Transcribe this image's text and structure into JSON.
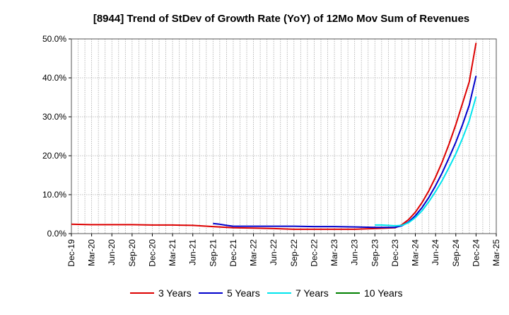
{
  "chart_data": {
    "type": "line",
    "title": "[8944]  Trend of StDev of Growth Rate (YoY) of 12Mo Mov Sum of Revenues",
    "xlabel": "",
    "ylabel": "",
    "x_ticks": [
      "Dec-19",
      "Mar-20",
      "Jun-20",
      "Sep-20",
      "Dec-20",
      "Mar-21",
      "Jun-21",
      "Sep-21",
      "Dec-21",
      "Mar-22",
      "Jun-22",
      "Sep-22",
      "Dec-22",
      "Mar-23",
      "Jun-23",
      "Sep-23",
      "Dec-23",
      "Mar-24",
      "Jun-24",
      "Sep-24",
      "Dec-24",
      "Mar-25"
    ],
    "y_ticks": [
      "0.0%",
      "10.0%",
      "20.0%",
      "30.0%",
      "40.0%",
      "50.0%"
    ],
    "ylim": [
      0,
      0.5
    ],
    "grid": true,
    "legend_position": "bottom",
    "series": [
      {
        "name": "3 Years",
        "color": "#dd0000",
        "points": [
          [
            "Dec-19",
            0.024
          ],
          [
            "Mar-20",
            0.023
          ],
          [
            "Jun-20",
            0.023
          ],
          [
            "Sep-20",
            0.023
          ],
          [
            "Dec-20",
            0.022
          ],
          [
            "Mar-21",
            0.022
          ],
          [
            "Jun-21",
            0.021
          ],
          [
            "Sep-21",
            0.018
          ],
          [
            "Dec-21",
            0.015
          ],
          [
            "Mar-22",
            0.014
          ],
          [
            "Jun-22",
            0.013
          ],
          [
            "Sep-22",
            0.011
          ],
          [
            "Dec-22",
            0.011
          ],
          [
            "Mar-23",
            0.011
          ],
          [
            "Jun-23",
            0.011
          ],
          [
            "Sep-23",
            0.013
          ],
          [
            "Dec-23",
            0.015
          ],
          [
            "Jan-24",
            0.023
          ],
          [
            "Feb-24",
            0.036
          ],
          [
            "Mar-24",
            0.055
          ],
          [
            "Apr-24",
            0.08
          ],
          [
            "May-24",
            0.11
          ],
          [
            "Jun-24",
            0.145
          ],
          [
            "Jul-24",
            0.185
          ],
          [
            "Aug-24",
            0.23
          ],
          [
            "Sep-24",
            0.28
          ],
          [
            "Oct-24",
            0.335
          ],
          [
            "Nov-24",
            0.39
          ],
          [
            "Dec-24",
            0.49
          ]
        ]
      },
      {
        "name": "5 Years",
        "color": "#0000cc",
        "points": [
          [
            "Sep-21",
            0.026
          ],
          [
            "Oct-21",
            0.024
          ],
          [
            "Nov-21",
            0.021
          ],
          [
            "Dec-21",
            0.019
          ],
          [
            "Mar-22",
            0.019
          ],
          [
            "Jun-22",
            0.019
          ],
          [
            "Sep-22",
            0.019
          ],
          [
            "Dec-22",
            0.018
          ],
          [
            "Mar-23",
            0.018
          ],
          [
            "Jun-23",
            0.017
          ],
          [
            "Sep-23",
            0.016
          ],
          [
            "Dec-23",
            0.016
          ],
          [
            "Jan-24",
            0.02
          ],
          [
            "Feb-24",
            0.03
          ],
          [
            "Mar-24",
            0.046
          ],
          [
            "Apr-24",
            0.067
          ],
          [
            "May-24",
            0.093
          ],
          [
            "Jun-24",
            0.123
          ],
          [
            "Jul-24",
            0.157
          ],
          [
            "Aug-24",
            0.195
          ],
          [
            "Sep-24",
            0.235
          ],
          [
            "Oct-24",
            0.28
          ],
          [
            "Nov-24",
            0.33
          ],
          [
            "Dec-24",
            0.405
          ]
        ]
      },
      {
        "name": "7 Years",
        "color": "#00e5ee",
        "points": [
          [
            "Sep-23",
            0.022
          ],
          [
            "Oct-23",
            0.022
          ],
          [
            "Nov-23",
            0.021
          ],
          [
            "Dec-23",
            0.02
          ],
          [
            "Jan-24",
            0.021
          ],
          [
            "Feb-24",
            0.028
          ],
          [
            "Mar-24",
            0.041
          ],
          [
            "Apr-24",
            0.059
          ],
          [
            "May-24",
            0.082
          ],
          [
            "Jun-24",
            0.108
          ],
          [
            "Jul-24",
            0.137
          ],
          [
            "Aug-24",
            0.17
          ],
          [
            "Sep-24",
            0.205
          ],
          [
            "Oct-24",
            0.245
          ],
          [
            "Nov-24",
            0.29
          ],
          [
            "Dec-24",
            0.352
          ]
        ]
      },
      {
        "name": "10 Years",
        "color": "#008000",
        "points": []
      }
    ]
  }
}
